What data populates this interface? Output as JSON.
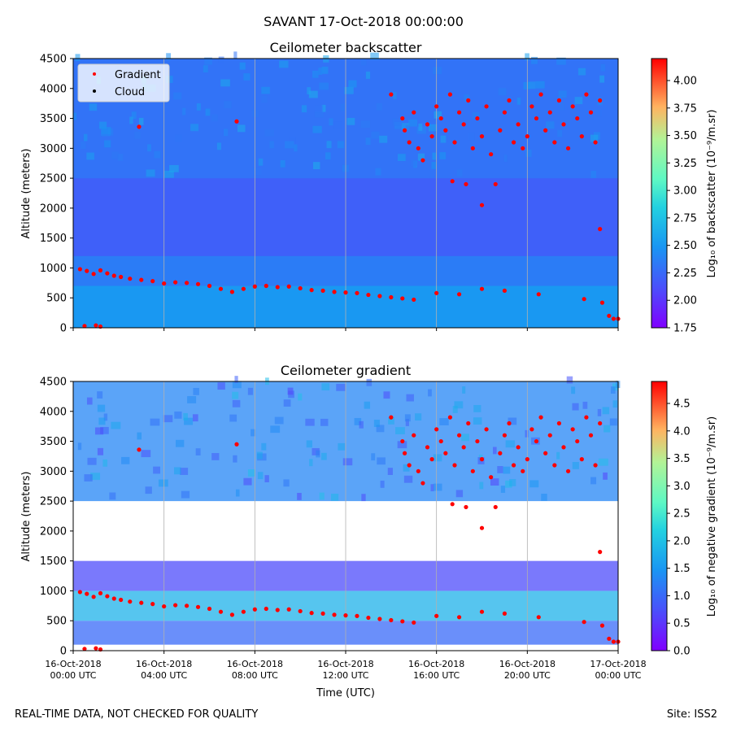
{
  "figure": {
    "suptitle": "SAVANT 17-Oct-2018 00:00:00",
    "footer_left": "REAL-TIME DATA, NOT CHECKED FOR QUALITY",
    "footer_right": "Site: ISS2"
  },
  "colors": {
    "gradient_marker": "#ff0000",
    "cloud_marker": "#000000",
    "frame": "#000000",
    "gridline": "#b0b0b0"
  },
  "chart_data": [
    {
      "type": "heatmap",
      "title": "Ceilometer backscatter",
      "xlabel": "",
      "ylabel": "Altitude (meters)",
      "ylim": [
        0,
        4500
      ],
      "yticks": [
        "0",
        "500",
        "1000",
        "1500",
        "2000",
        "2500",
        "3000",
        "3500",
        "4000",
        "4500"
      ],
      "x_range_hours": [
        0,
        24
      ],
      "x_tick_hours": [
        0,
        4,
        8,
        12,
        16,
        20,
        24
      ],
      "x_tick_labels": [],
      "grid": "vertical",
      "legend_position": "top-left",
      "legend": [
        {
          "label": "Gradient",
          "symbol": "red-dot"
        },
        {
          "label": "Cloud",
          "symbol": "black-dot"
        }
      ],
      "colorbar": {
        "label": "Log₁₀ of backscatter (10⁻⁹/m.sr)",
        "min": 1.75,
        "max": 4.2,
        "tick_labels": [
          "1.75",
          "2.00",
          "2.25",
          "2.50",
          "2.75",
          "3.00",
          "3.25",
          "3.50",
          "3.75",
          "4.00"
        ]
      },
      "field_levels": [
        {
          "from_m": 0,
          "to_m": 700,
          "value": 2.5
        },
        {
          "from_m": 700,
          "to_m": 1200,
          "value": 2.35
        },
        {
          "from_m": 1200,
          "to_m": 2500,
          "value": 2.2
        },
        {
          "from_m": 2500,
          "to_m": 4500,
          "value": 2.3
        }
      ],
      "gradient_points": [
        [
          0.3,
          980
        ],
        [
          0.6,
          950
        ],
        [
          0.9,
          900
        ],
        [
          1.2,
          960
        ],
        [
          1.5,
          910
        ],
        [
          1.8,
          870
        ],
        [
          2.1,
          850
        ],
        [
          2.5,
          820
        ],
        [
          3,
          800
        ],
        [
          3.5,
          780
        ],
        [
          4,
          740
        ],
        [
          4.5,
          760
        ],
        [
          5,
          750
        ],
        [
          5.5,
          730
        ],
        [
          6,
          700
        ],
        [
          6.5,
          650
        ],
        [
          7,
          600
        ],
        [
          7.5,
          650
        ],
        [
          8,
          690
        ],
        [
          8.5,
          700
        ],
        [
          9,
          680
        ],
        [
          9.5,
          690
        ],
        [
          10,
          660
        ],
        [
          10.5,
          630
        ],
        [
          11,
          620
        ],
        [
          11.5,
          600
        ],
        [
          12,
          590
        ],
        [
          12.5,
          580
        ],
        [
          13,
          550
        ],
        [
          13.5,
          530
        ],
        [
          14,
          510
        ],
        [
          14.5,
          490
        ],
        [
          15,
          470
        ],
        [
          2.9,
          3360
        ],
        [
          7.2,
          3450
        ],
        [
          1,
          40
        ],
        [
          0.5,
          30
        ],
        [
          1.2,
          20
        ],
        [
          14.0,
          3900
        ],
        [
          14.5,
          3500
        ],
        [
          14.6,
          3300
        ],
        [
          14.8,
          3100
        ],
        [
          15,
          3600
        ],
        [
          15.2,
          3000
        ],
        [
          15.4,
          2800
        ],
        [
          15.6,
          3400
        ],
        [
          15.8,
          3200
        ],
        [
          16,
          3700
        ],
        [
          16.2,
          3500
        ],
        [
          16.4,
          3300
        ],
        [
          16.6,
          3900
        ],
        [
          16.8,
          3100
        ],
        [
          17,
          3600
        ],
        [
          17.2,
          3400
        ],
        [
          17.4,
          3800
        ],
        [
          17.6,
          3000
        ],
        [
          17.8,
          3500
        ],
        [
          18,
          3200
        ],
        [
          18.2,
          3700
        ],
        [
          18.4,
          2900
        ],
        [
          18.6,
          2400
        ],
        [
          18.8,
          3300
        ],
        [
          19,
          3600
        ],
        [
          19.2,
          3800
        ],
        [
          19.4,
          3100
        ],
        [
          19.6,
          3400
        ],
        [
          19.8,
          3000
        ],
        [
          20,
          3200
        ],
        [
          20.2,
          3700
        ],
        [
          20.4,
          3500
        ],
        [
          20.6,
          3900
        ],
        [
          20.8,
          3300
        ],
        [
          21,
          3600
        ],
        [
          21.2,
          3100
        ],
        [
          21.4,
          3800
        ],
        [
          21.6,
          3400
        ],
        [
          21.8,
          3000
        ],
        [
          22,
          3700
        ],
        [
          22.2,
          3500
        ],
        [
          22.4,
          3200
        ],
        [
          22.6,
          3900
        ],
        [
          22.8,
          3600
        ],
        [
          23,
          3100
        ],
        [
          23.2,
          3800
        ],
        [
          16.7,
          2450
        ],
        [
          17.3,
          2400
        ],
        [
          18,
          2050
        ],
        [
          23.2,
          1650
        ],
        [
          16,
          580
        ],
        [
          17,
          560
        ],
        [
          18,
          650
        ],
        [
          19,
          620
        ],
        [
          20.5,
          560
        ],
        [
          22.5,
          480
        ],
        [
          23.3,
          420
        ],
        [
          23.6,
          200
        ],
        [
          23.8,
          150
        ],
        [
          24,
          150
        ]
      ],
      "cloud_points": []
    },
    {
      "type": "heatmap",
      "title": "Ceilometer gradient",
      "xlabel": "Time (UTC)",
      "ylabel": "Altitude (meters)",
      "ylim": [
        0,
        4500
      ],
      "yticks": [
        "0",
        "500",
        "1000",
        "1500",
        "2000",
        "2500",
        "3000",
        "3500",
        "4000",
        "4500"
      ],
      "x_range_hours": [
        0,
        24
      ],
      "x_tick_hours": [
        0,
        4,
        8,
        12,
        16,
        20,
        24
      ],
      "x_tick_labels": [
        [
          "16-Oct-2018",
          "00:00 UTC"
        ],
        [
          "16-Oct-2018",
          "04:00 UTC"
        ],
        [
          "16-Oct-2018",
          "08:00 UTC"
        ],
        [
          "16-Oct-2018",
          "12:00 UTC"
        ],
        [
          "16-Oct-2018",
          "16:00 UTC"
        ],
        [
          "16-Oct-2018",
          "20:00 UTC"
        ],
        [
          "17-Oct-2018",
          "00:00 UTC"
        ]
      ],
      "grid": "vertical",
      "colorbar": {
        "label": "Log₁₀ of negative gradient (10⁻⁹/m.sr)",
        "min": 0.0,
        "max": 4.9,
        "tick_labels": [
          "0.0",
          "0.5",
          "1.0",
          "1.5",
          "2.0",
          "2.5",
          "3.0",
          "3.5",
          "4.0",
          "4.5"
        ]
      },
      "field_levels": [
        {
          "from_m": 100,
          "to_m": 500,
          "value": 1.0
        },
        {
          "from_m": 500,
          "to_m": 1000,
          "value": 1.8
        },
        {
          "from_m": 1000,
          "to_m": 1500,
          "value": 0.7
        },
        {
          "from_m": 2500,
          "to_m": 4500,
          "value": 1.3
        }
      ],
      "gradient_points": "same_as_backscatter",
      "cloud_points": []
    }
  ]
}
